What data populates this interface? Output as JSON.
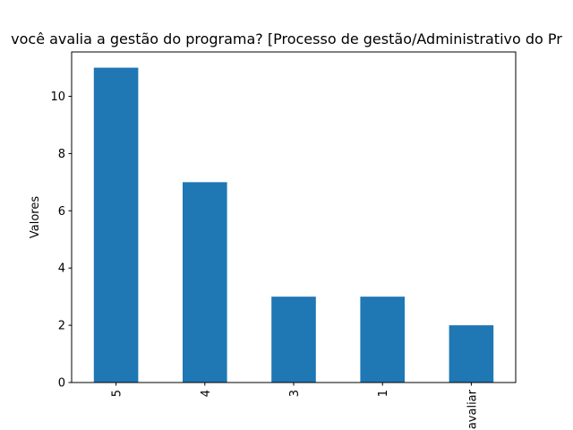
{
  "chart_data": {
    "type": "bar",
    "title": "você avalia a gestão do programa? [Processo de gestão/Administrativo do Pr",
    "xlabel": "",
    "ylabel": "Valores",
    "categories": [
      "5",
      "4",
      "3",
      "1",
      "avaliar"
    ],
    "values": [
      11,
      7,
      3,
      3,
      2
    ],
    "ylim": [
      0,
      11.55
    ],
    "yticks": [
      0,
      2,
      4,
      6,
      8,
      10
    ],
    "bar_color": "#1f77b4",
    "grid": false,
    "legend": "none"
  }
}
